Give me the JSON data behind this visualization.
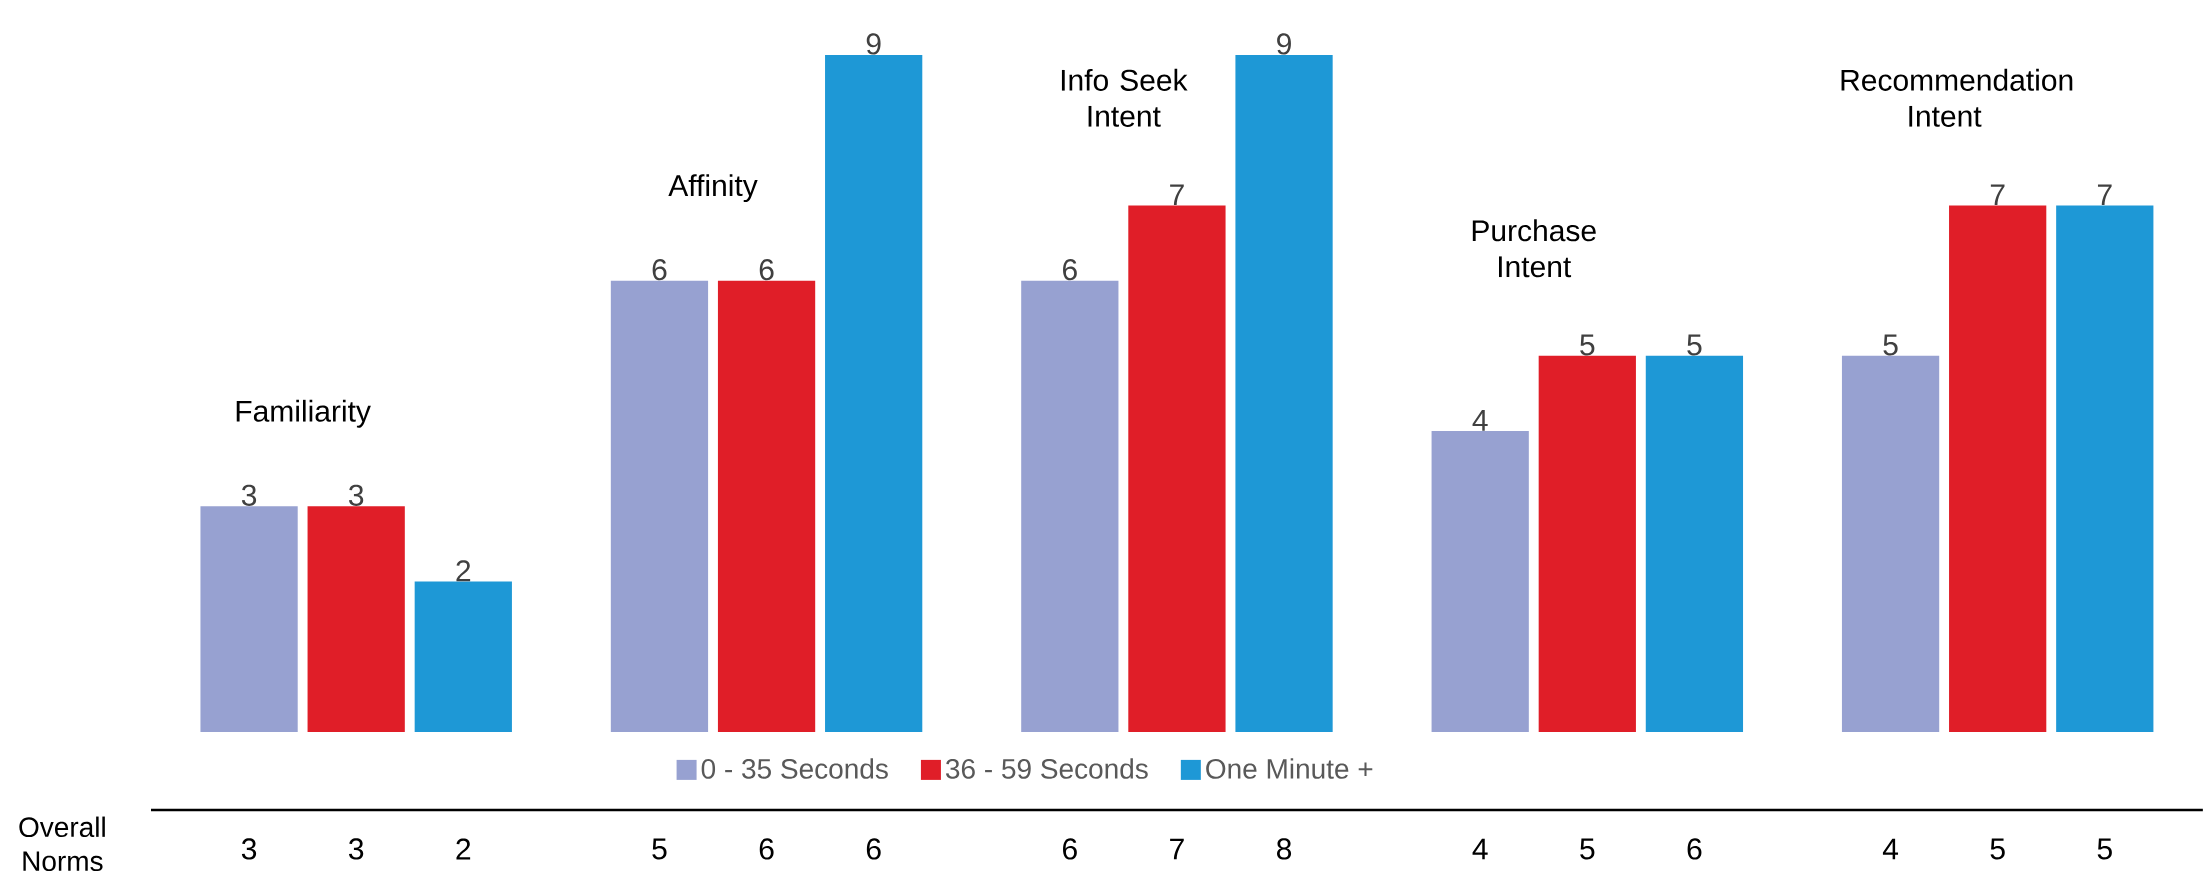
{
  "chart_data": {
    "type": "bar",
    "categories": [
      "Familiarity",
      "Affinity",
      "Info Seek Intent",
      "Purchase Intent",
      "Recommendation Intent"
    ],
    "series": [
      {
        "name": "0 - 35 Seconds",
        "color": "#97a1d1",
        "values": [
          3,
          6,
          6,
          4,
          5
        ]
      },
      {
        "name": "36 - 59 Seconds",
        "color": "#e01e28",
        "values": [
          3,
          6,
          7,
          5,
          7
        ]
      },
      {
        "name": "One Minute +",
        "color": "#1e98d6",
        "values": [
          2,
          9,
          9,
          5,
          7
        ]
      }
    ],
    "data_labels": true,
    "legend": "bottom",
    "annotations": [
      "Overall Norms",
      "3",
      "3",
      "2",
      "5",
      "6",
      "6",
      "6",
      "7",
      "8",
      "4",
      "5",
      "6",
      "4",
      "5",
      "5"
    ]
  }
}
